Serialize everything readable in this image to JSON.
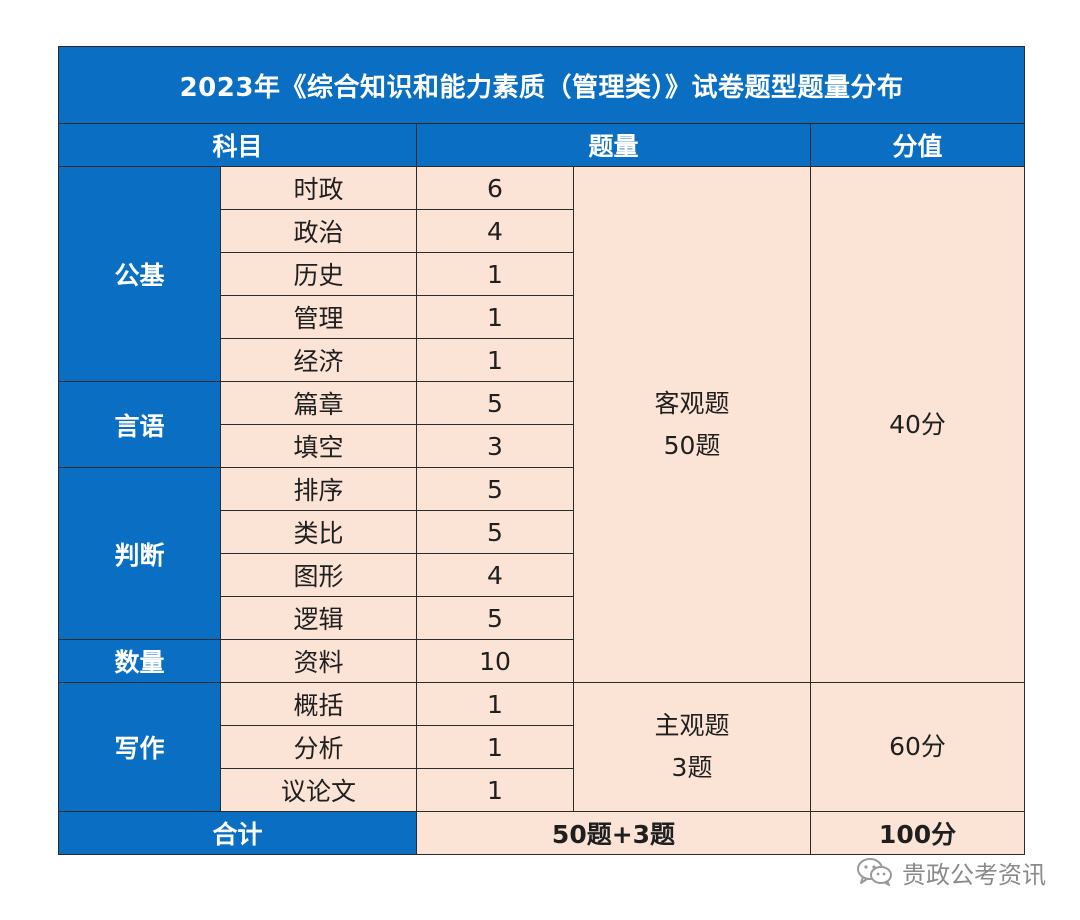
{
  "title": "2023年《综合知识和能力素质（管理类）》试卷题型题量分布",
  "headers": {
    "subject": "科目",
    "count": "题量",
    "score": "分值"
  },
  "categories": {
    "gongji": "公基",
    "yanyu": "言语",
    "panduan": "判断",
    "shuliang": "数量",
    "xiezuo": "写作"
  },
  "rows": [
    {
      "sub": "时政",
      "num": "6"
    },
    {
      "sub": "政治",
      "num": "4"
    },
    {
      "sub": "历史",
      "num": "1"
    },
    {
      "sub": "管理",
      "num": "1"
    },
    {
      "sub": "经济",
      "num": "1"
    },
    {
      "sub": "篇章",
      "num": "5"
    },
    {
      "sub": "填空",
      "num": "3"
    },
    {
      "sub": "排序",
      "num": "5"
    },
    {
      "sub": "类比",
      "num": "5"
    },
    {
      "sub": "图形",
      "num": "4"
    },
    {
      "sub": "逻辑",
      "num": "5"
    },
    {
      "sub": "资料",
      "num": "10"
    },
    {
      "sub": "概括",
      "num": "1"
    },
    {
      "sub": "分析",
      "num": "1"
    },
    {
      "sub": "议论文",
      "num": "1"
    }
  ],
  "objective": {
    "type": "客观题",
    "count": "50题",
    "score": "40分"
  },
  "subjective": {
    "type": "主观题",
    "count": "3题",
    "score": "60分"
  },
  "total": {
    "label": "合计",
    "count": "50题+3题",
    "score": "100分"
  },
  "watermark": {
    "text": "贵政公考资讯",
    "icon": "wechat-icon"
  }
}
